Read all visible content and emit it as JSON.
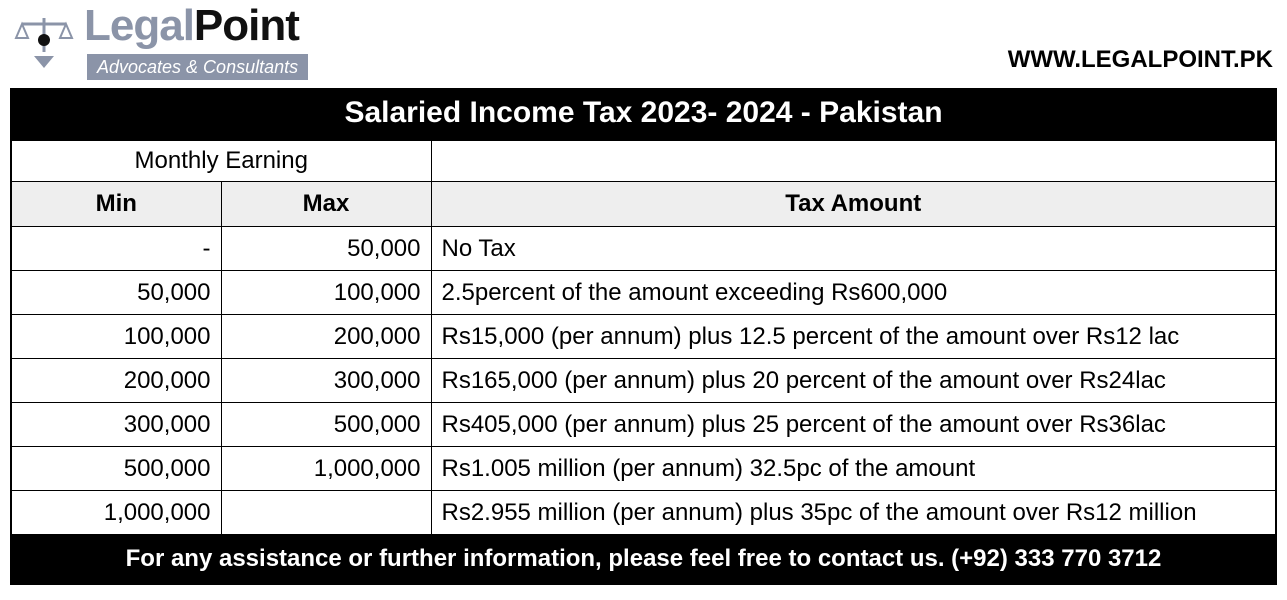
{
  "brand": {
    "part1": "Legal",
    "part2": "Point",
    "tagline": "Advocates & Consultants",
    "part1_color": "#8b94a8",
    "part2_color": "#111111",
    "tagline_bg": "#8b94a8",
    "tagline_color": "#ffffff"
  },
  "website": "WWW.LEGALPOINT.PK",
  "table": {
    "title": "Salaried Income Tax 2023- 2024 - Pakistan",
    "group_header": "Monthly Earning",
    "columns": [
      "Min",
      "Max",
      "Tax Amount"
    ],
    "title_bg": "#000000",
    "title_color": "#ffffff",
    "header_bg": "#eeeeee",
    "border_color": "#000000",
    "rows": [
      {
        "min": "-",
        "max": "50,000",
        "tax": "No Tax"
      },
      {
        "min": "50,000",
        "max": "100,000",
        "tax": "2.5percent of the amount exceeding Rs600,000"
      },
      {
        "min": "100,000",
        "max": "200,000",
        "tax": "Rs15,000 (per annum) plus 12.5 percent of the amount over Rs12 lac"
      },
      {
        "min": "200,000",
        "max": "300,000",
        "tax": "Rs165,000 (per annum) plus 20 percent of the amount over Rs24lac"
      },
      {
        "min": "300,000",
        "max": "500,000",
        "tax": "Rs405,000 (per annum) plus 25 percent of the amount over Rs36lac"
      },
      {
        "min": "500,000",
        "max": "1,000,000",
        "tax": "Rs1.005 million (per annum) 32.5pc of the amount"
      },
      {
        "min": "1,000,000",
        "max": "",
        "tax": " Rs2.955 million (per annum) plus 35pc of the amount over Rs12 million"
      }
    ]
  },
  "footer": "For any assistance or further information, please feel free to contact us. (+92) 333 770 3712"
}
